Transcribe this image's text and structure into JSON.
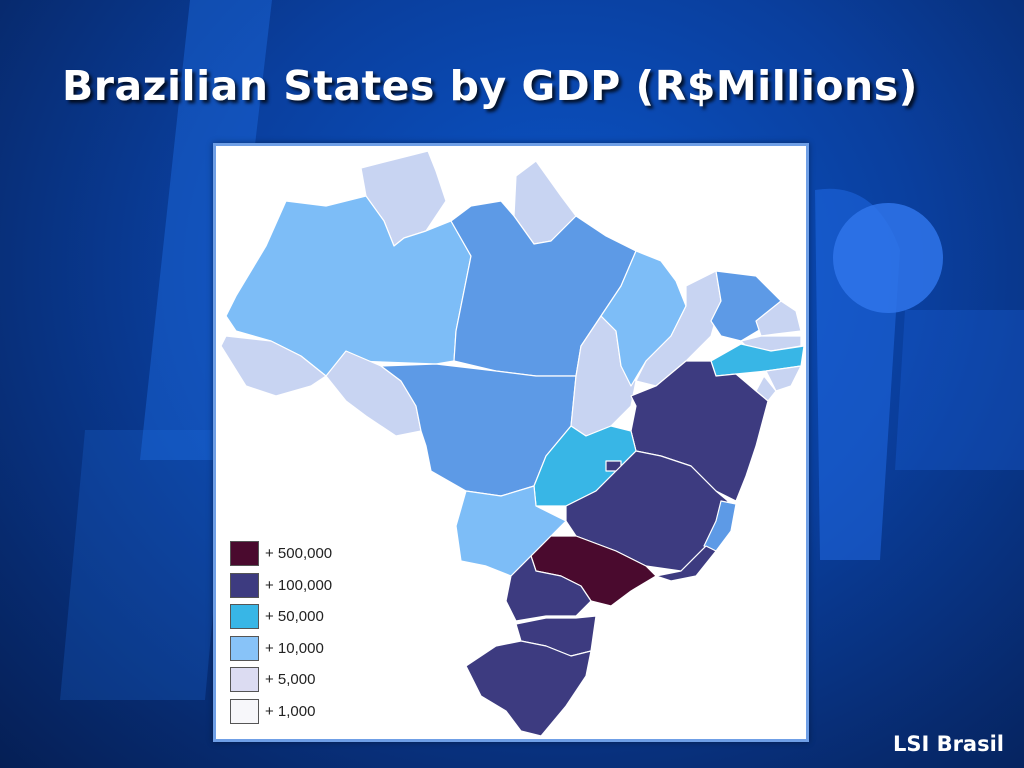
{
  "slide": {
    "title": "Brazilian States by GDP (R$Millions)",
    "footer": "LSI Brasil"
  },
  "colors": {
    "background": "#0a3f9e",
    "frame_border": "#6f9fe6",
    "tier_500000": "#4a0a2e",
    "tier_100000": "#3d3b80",
    "tier_50000": "#38b6e6",
    "tier_10000": "#7dbdf7",
    "tier_mid": "#5d9ae6",
    "tier_5000": "#c8d4f2",
    "tier_1000": "#f7f7f7"
  },
  "map": {
    "legend": [
      {
        "label": "+ 500,000",
        "color": "#4a0a2e"
      },
      {
        "label": "+ 100,000",
        "color": "#3d3b80"
      },
      {
        "label": "+ 50,000",
        "color": "#38b6e6"
      },
      {
        "label": "+ 10,000",
        "color": "#88c3f8"
      },
      {
        "label": "+ 5,000",
        "color": "#dcdcf2"
      },
      {
        "label": "+ 1,000",
        "color": "#f7f7fa"
      }
    ]
  }
}
